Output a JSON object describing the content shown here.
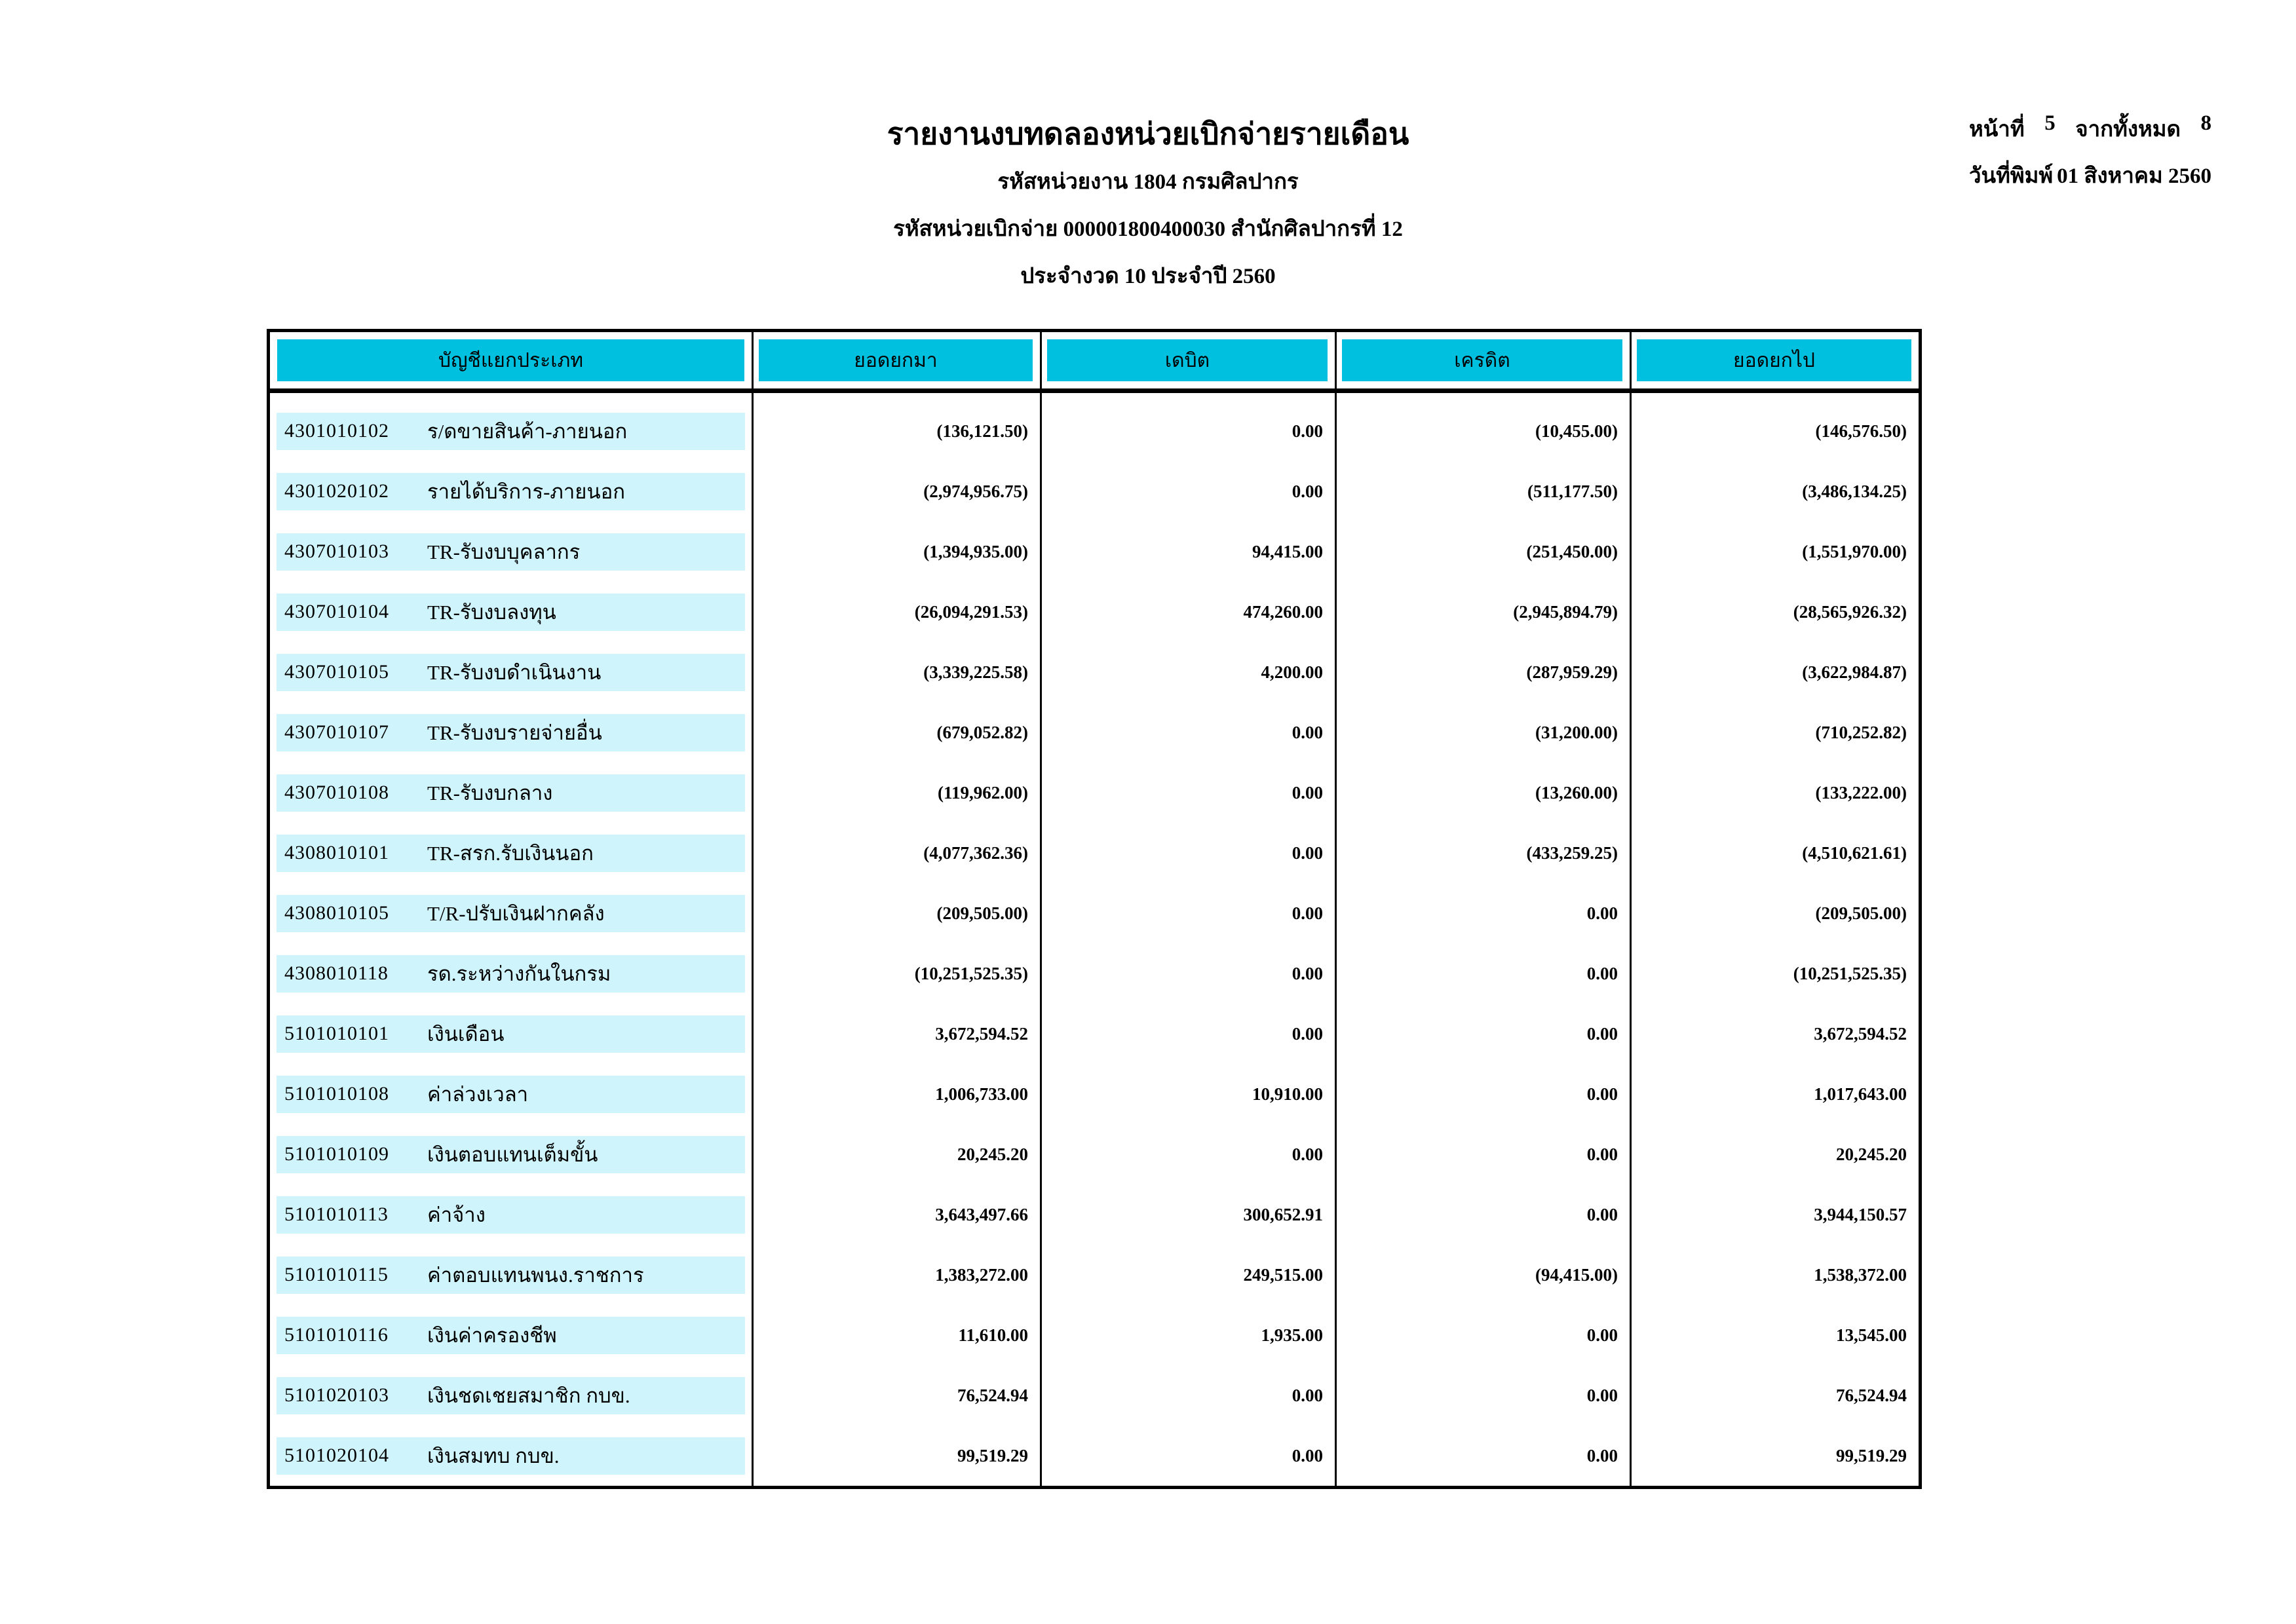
{
  "doc_header": {
    "title": "รายงานงบทดลองหน่วยเบิกจ่ายรายเดือน",
    "agency_line": "รหัสหน่วยงาน 1804 กรมศิลปากร",
    "disbursement_unit_line": "รหัสหน่วยเบิกจ่าย 000001800400030 สำนักศิลปากรที่ 12",
    "period_line": "ประจำงวด 10 ประจำปี 2560"
  },
  "page_info": {
    "page_label": "หน้าที่",
    "page_number": "5",
    "total_label": "จากทั้งหมด",
    "total_pages": "8",
    "print_date_label": "วันที่พิมพ์",
    "print_date": "01 สิงหาคม 2560"
  },
  "table": {
    "columns": [
      "บัญชีแยกประเภท",
      "ยอดยกมา",
      "เดบิต",
      "เครดิต",
      "ยอดยกไป"
    ],
    "rows": [
      {
        "code": "4301010102",
        "name": "ร/ดขายสินค้า-ภายนอก",
        "brought_forward": "(136,121.50)",
        "debit": "0.00",
        "credit": "(10,455.00)",
        "carried_forward": "(146,576.50)"
      },
      {
        "code": "4301020102",
        "name": "รายได้บริการ-ภายนอก",
        "brought_forward": "(2,974,956.75)",
        "debit": "0.00",
        "credit": "(511,177.50)",
        "carried_forward": "(3,486,134.25)"
      },
      {
        "code": "4307010103",
        "name": "TR-รับงบบุคลากร",
        "brought_forward": "(1,394,935.00)",
        "debit": "94,415.00",
        "credit": "(251,450.00)",
        "carried_forward": "(1,551,970.00)"
      },
      {
        "code": "4307010104",
        "name": "TR-รับงบลงทุน",
        "brought_forward": "(26,094,291.53)",
        "debit": "474,260.00",
        "credit": "(2,945,894.79)",
        "carried_forward": "(28,565,926.32)"
      },
      {
        "code": "4307010105",
        "name": "TR-รับงบดำเนินงาน",
        "brought_forward": "(3,339,225.58)",
        "debit": "4,200.00",
        "credit": "(287,959.29)",
        "carried_forward": "(3,622,984.87)"
      },
      {
        "code": "4307010107",
        "name": "TR-รับงบรายจ่ายอื่น",
        "brought_forward": "(679,052.82)",
        "debit": "0.00",
        "credit": "(31,200.00)",
        "carried_forward": "(710,252.82)"
      },
      {
        "code": "4307010108",
        "name": "TR-รับงบกลาง",
        "brought_forward": "(119,962.00)",
        "debit": "0.00",
        "credit": "(13,260.00)",
        "carried_forward": "(133,222.00)"
      },
      {
        "code": "4308010101",
        "name": "TR-สรก.รับเงินนอก",
        "brought_forward": "(4,077,362.36)",
        "debit": "0.00",
        "credit": "(433,259.25)",
        "carried_forward": "(4,510,621.61)"
      },
      {
        "code": "4308010105",
        "name": "T/R-ปรับเงินฝากคลัง",
        "brought_forward": "(209,505.00)",
        "debit": "0.00",
        "credit": "0.00",
        "carried_forward": "(209,505.00)"
      },
      {
        "code": "4308010118",
        "name": "รด.ระหว่างกันในกรม",
        "brought_forward": "(10,251,525.35)",
        "debit": "0.00",
        "credit": "0.00",
        "carried_forward": "(10,251,525.35)"
      },
      {
        "code": "5101010101",
        "name": "เงินเดือน",
        "brought_forward": "3,672,594.52",
        "debit": "0.00",
        "credit": "0.00",
        "carried_forward": "3,672,594.52"
      },
      {
        "code": "5101010108",
        "name": "ค่าล่วงเวลา",
        "brought_forward": "1,006,733.00",
        "debit": "10,910.00",
        "credit": "0.00",
        "carried_forward": "1,017,643.00"
      },
      {
        "code": "5101010109",
        "name": "เงินตอบแทนเต็มขั้น",
        "brought_forward": "20,245.20",
        "debit": "0.00",
        "credit": "0.00",
        "carried_forward": "20,245.20"
      },
      {
        "code": "5101010113",
        "name": "ค่าจ้าง",
        "brought_forward": "3,643,497.66",
        "debit": "300,652.91",
        "credit": "0.00",
        "carried_forward": "3,944,150.57"
      },
      {
        "code": "5101010115",
        "name": "ค่าตอบแทนพนง.ราชการ",
        "brought_forward": "1,383,272.00",
        "debit": "249,515.00",
        "credit": "(94,415.00)",
        "carried_forward": "1,538,372.00"
      },
      {
        "code": "5101010116",
        "name": "เงินค่าครองชีพ",
        "brought_forward": "11,610.00",
        "debit": "1,935.00",
        "credit": "0.00",
        "carried_forward": "13,545.00"
      },
      {
        "code": "5101020103",
        "name": "เงินชดเชยสมาชิก กบข.",
        "brought_forward": "76,524.94",
        "debit": "0.00",
        "credit": "0.00",
        "carried_forward": "76,524.94"
      },
      {
        "code": "5101020104",
        "name": "เงินสมทบ กบข.",
        "brought_forward": "99,519.29",
        "debit": "0.00",
        "credit": "0.00",
        "carried_forward": "99,519.29"
      }
    ]
  },
  "colors": {
    "header_cyan": "#00C0E0",
    "row_highlight": "#CFF4FB"
  }
}
